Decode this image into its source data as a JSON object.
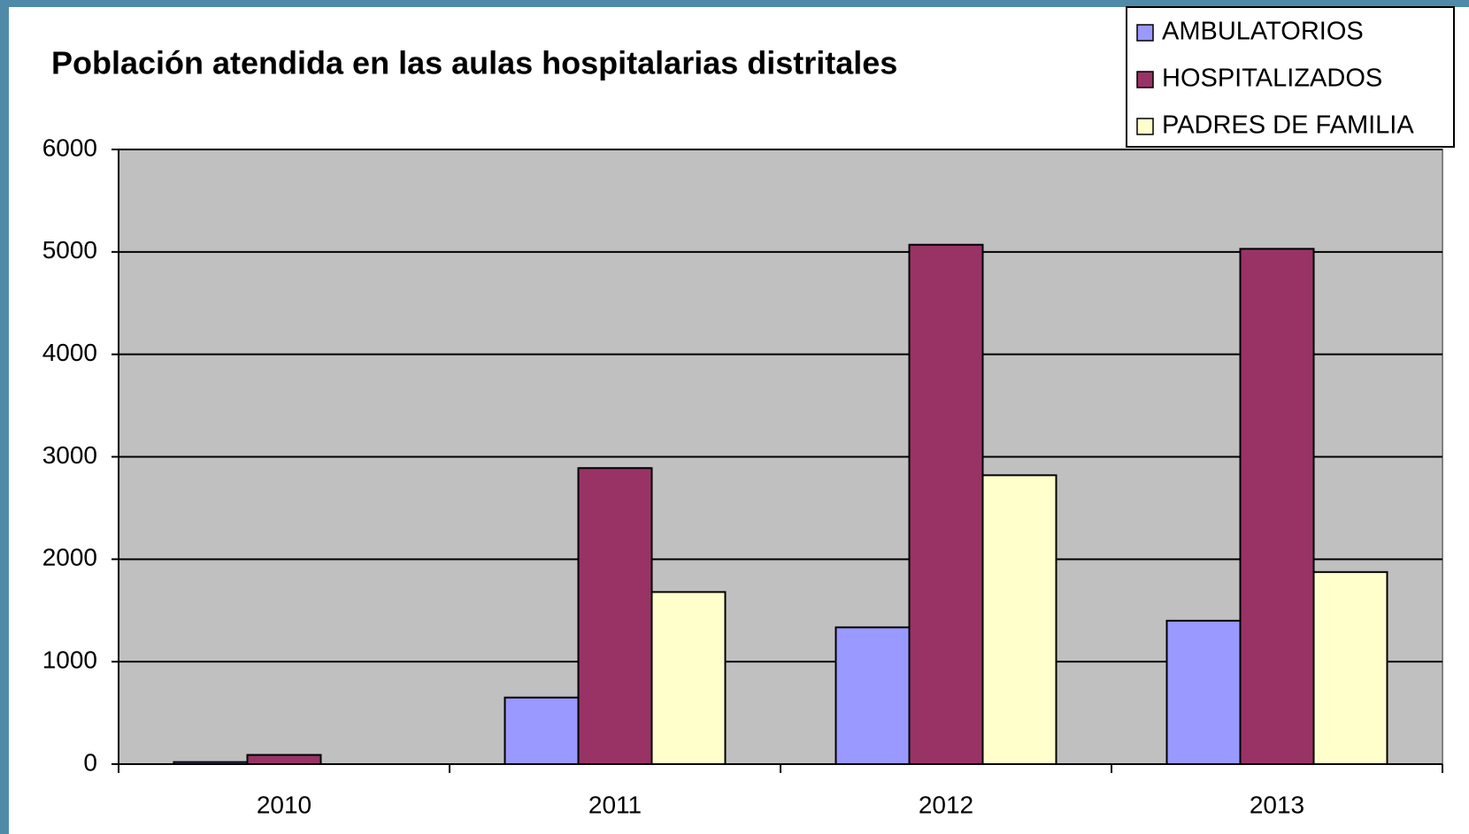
{
  "chart_data": {
    "type": "bar",
    "title": "Población atendida en las aulas hospitalarias distritales",
    "categories": [
      "2010",
      "2011",
      "2012",
      "2013"
    ],
    "series": [
      {
        "name": "AMBULATORIOS",
        "color": "#9999ff",
        "values": [
          20,
          650,
          1335,
          1400
        ]
      },
      {
        "name": "HOSPITALIZADOS",
        "color": "#993366",
        "values": [
          90,
          2890,
          5070,
          5030
        ]
      },
      {
        "name": "PADRES DE FAMILIA",
        "color": "#ffffcc",
        "values": [
          0,
          1680,
          2820,
          1875
        ]
      }
    ],
    "ylim": [
      0,
      6000
    ],
    "yticks": [
      0,
      1000,
      2000,
      3000,
      4000,
      5000,
      6000
    ],
    "grid": true,
    "plot_background": "#c0c0c0",
    "legend": "top-right"
  }
}
